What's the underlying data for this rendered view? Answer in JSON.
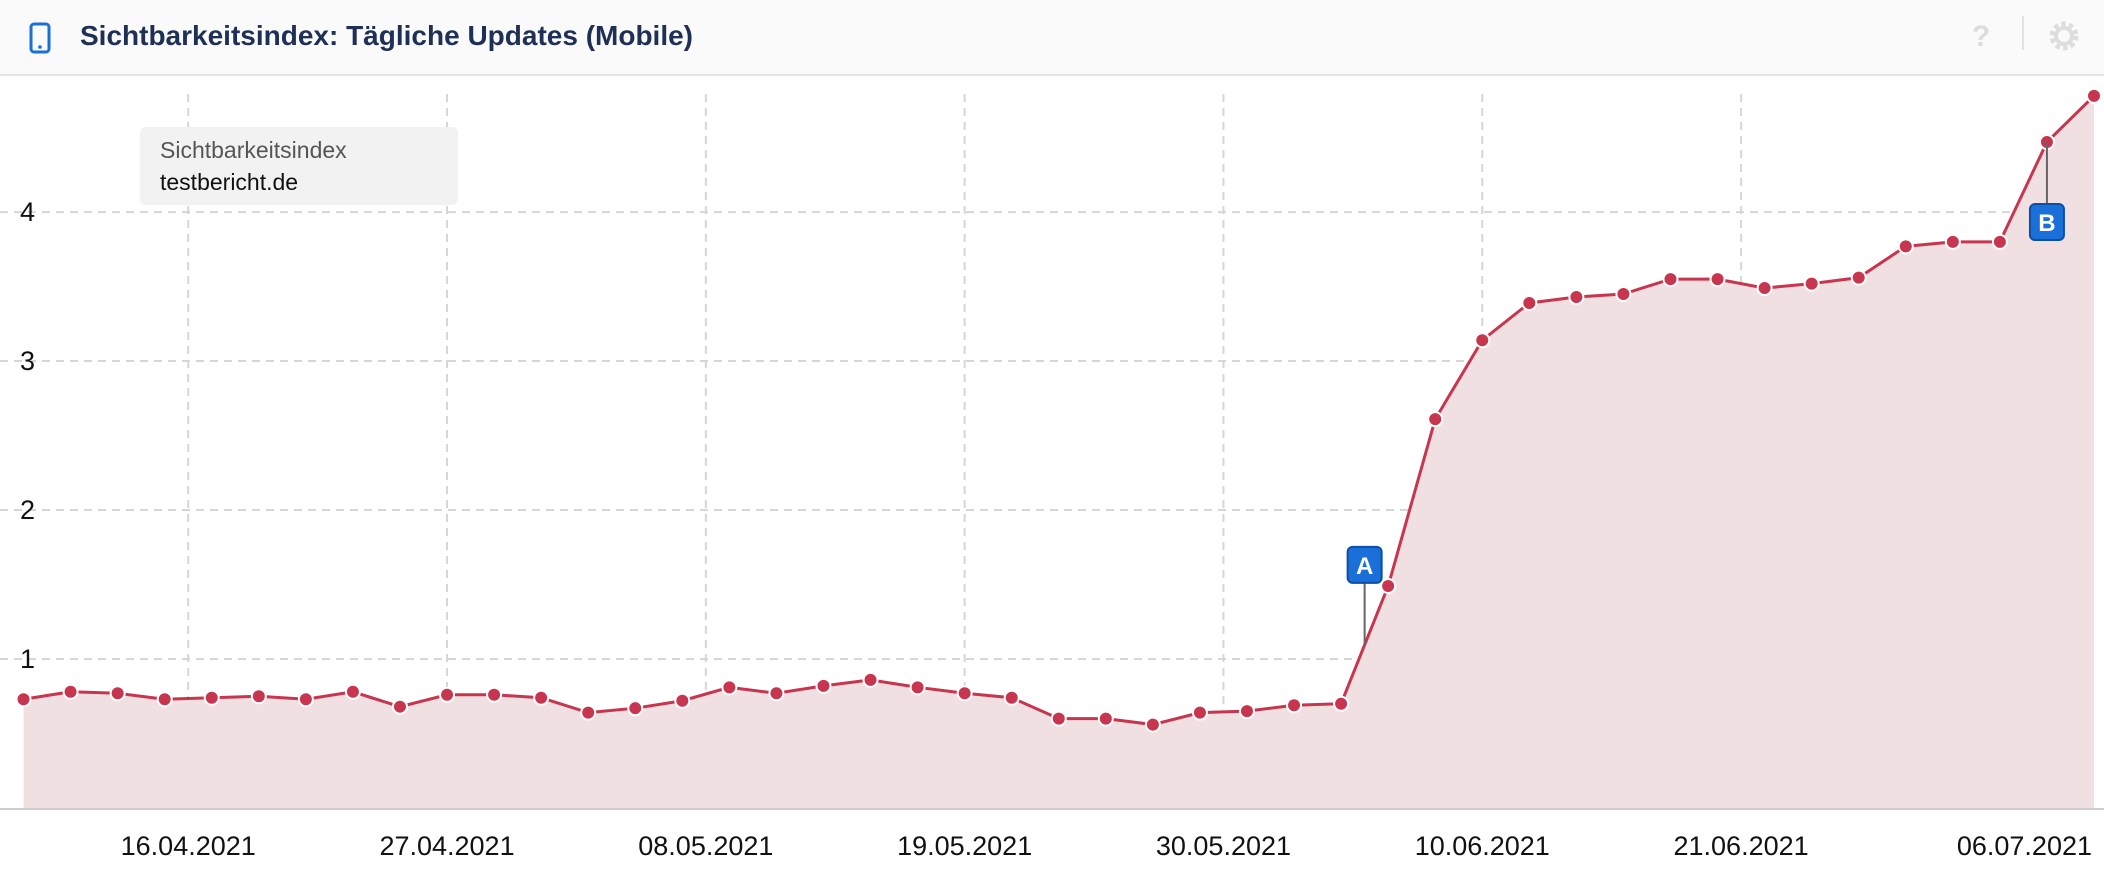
{
  "header": {
    "title": "Sichtbarkeitsindex: Tägliche Updates (Mobile)"
  },
  "chart_data": {
    "type": "area",
    "legend_title": "Sichtbarkeitsindex",
    "legend_corner": "top-left",
    "x": [
      "09.04.2021",
      "11.04.2021",
      "13.04.2021",
      "15.04.2021",
      "17.04.2021",
      "19.04.2021",
      "21.04.2021",
      "23.04.2021",
      "25.04.2021",
      "27.04.2021",
      "29.04.2021",
      "01.05.2021",
      "03.05.2021",
      "05.05.2021",
      "07.05.2021",
      "09.05.2021",
      "11.05.2021",
      "13.05.2021",
      "15.05.2021",
      "17.05.2021",
      "19.05.2021",
      "21.05.2021",
      "23.05.2021",
      "25.05.2021",
      "27.05.2021",
      "29.05.2021",
      "31.05.2021",
      "02.06.2021",
      "04.06.2021",
      "06.06.2021",
      "08.06.2021",
      "10.06.2021",
      "12.06.2021",
      "14.06.2021",
      "16.06.2021",
      "18.06.2021",
      "20.06.2021",
      "22.06.2021",
      "24.06.2021",
      "26.06.2021",
      "28.06.2021",
      "30.06.2021",
      "02.07.2021",
      "04.07.2021",
      "06.07.2021"
    ],
    "series": [
      {
        "name": "testbericht.de",
        "color": "#c7354f",
        "fill": "#f0e0e2",
        "values": [
          0.73,
          0.78,
          0.77,
          0.73,
          0.74,
          0.75,
          0.73,
          0.78,
          0.68,
          0.76,
          0.76,
          0.74,
          0.64,
          0.67,
          0.72,
          0.81,
          0.77,
          0.82,
          0.86,
          0.81,
          0.77,
          0.74,
          0.6,
          0.6,
          0.56,
          0.64,
          0.65,
          0.69,
          0.7,
          1.49,
          2.61,
          3.14,
          3.39,
          3.43,
          3.45,
          3.55,
          3.55,
          3.49,
          3.52,
          3.56,
          3.77,
          3.8,
          3.8,
          4.47,
          4.78
        ]
      }
    ],
    "xlim": [
      "08.04.2021",
      "06.07.2021"
    ],
    "xticks": [
      "16.04.2021",
      "27.04.2021",
      "08.05.2021",
      "19.05.2021",
      "30.05.2021",
      "10.06.2021",
      "21.06.2021",
      "06.07.2021"
    ],
    "ylim": [
      0,
      4.9
    ],
    "yticks": [
      1,
      2,
      3,
      4
    ],
    "grid": true,
    "annotations": [
      {
        "label": "A",
        "x": "05.06.2021"
      },
      {
        "label": "B",
        "x": "04.07.2021"
      }
    ]
  }
}
